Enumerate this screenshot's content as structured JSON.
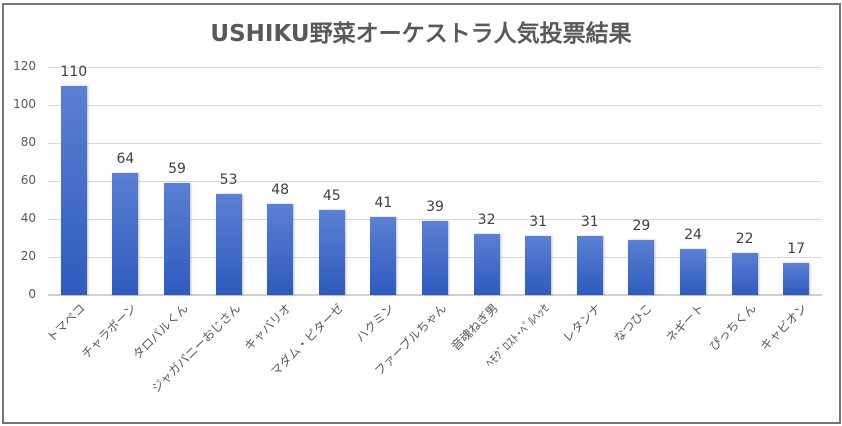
{
  "chart_data": {
    "type": "bar",
    "title": "USHIKU野菜オーケストラ人気投票結果",
    "xlabel": "",
    "ylabel": "",
    "ylim": [
      0,
      120
    ],
    "yticks": [
      0,
      20,
      40,
      60,
      80,
      100,
      120
    ],
    "grid": true,
    "legend": null,
    "data_labels": true,
    "categories": [
      "トマペコ",
      "チャラボーン",
      "タロバルくん",
      "ジャガパニーおじさん",
      "キャバリオ",
      "マダム・ピターゼ",
      "ハクミン",
      "ファーブルちゃん",
      "音魂ねぎ男",
      "ﾍﾓｸﾞﾛｽﾄ･ﾍﾞﾙﾍｯｾ",
      "レタンナ",
      "なつひこ",
      "ネギート",
      "ぴっちくん",
      "キャビオン"
    ],
    "values": [
      110,
      64,
      59,
      53,
      48,
      45,
      41,
      39,
      32,
      31,
      31,
      29,
      24,
      22,
      17
    ],
    "colors": {
      "bar_top": "#5B80D4",
      "bar_bottom": "#2E5BBE",
      "grid": "#D9D9D9",
      "text": "#595959",
      "border": "#767676"
    }
  }
}
